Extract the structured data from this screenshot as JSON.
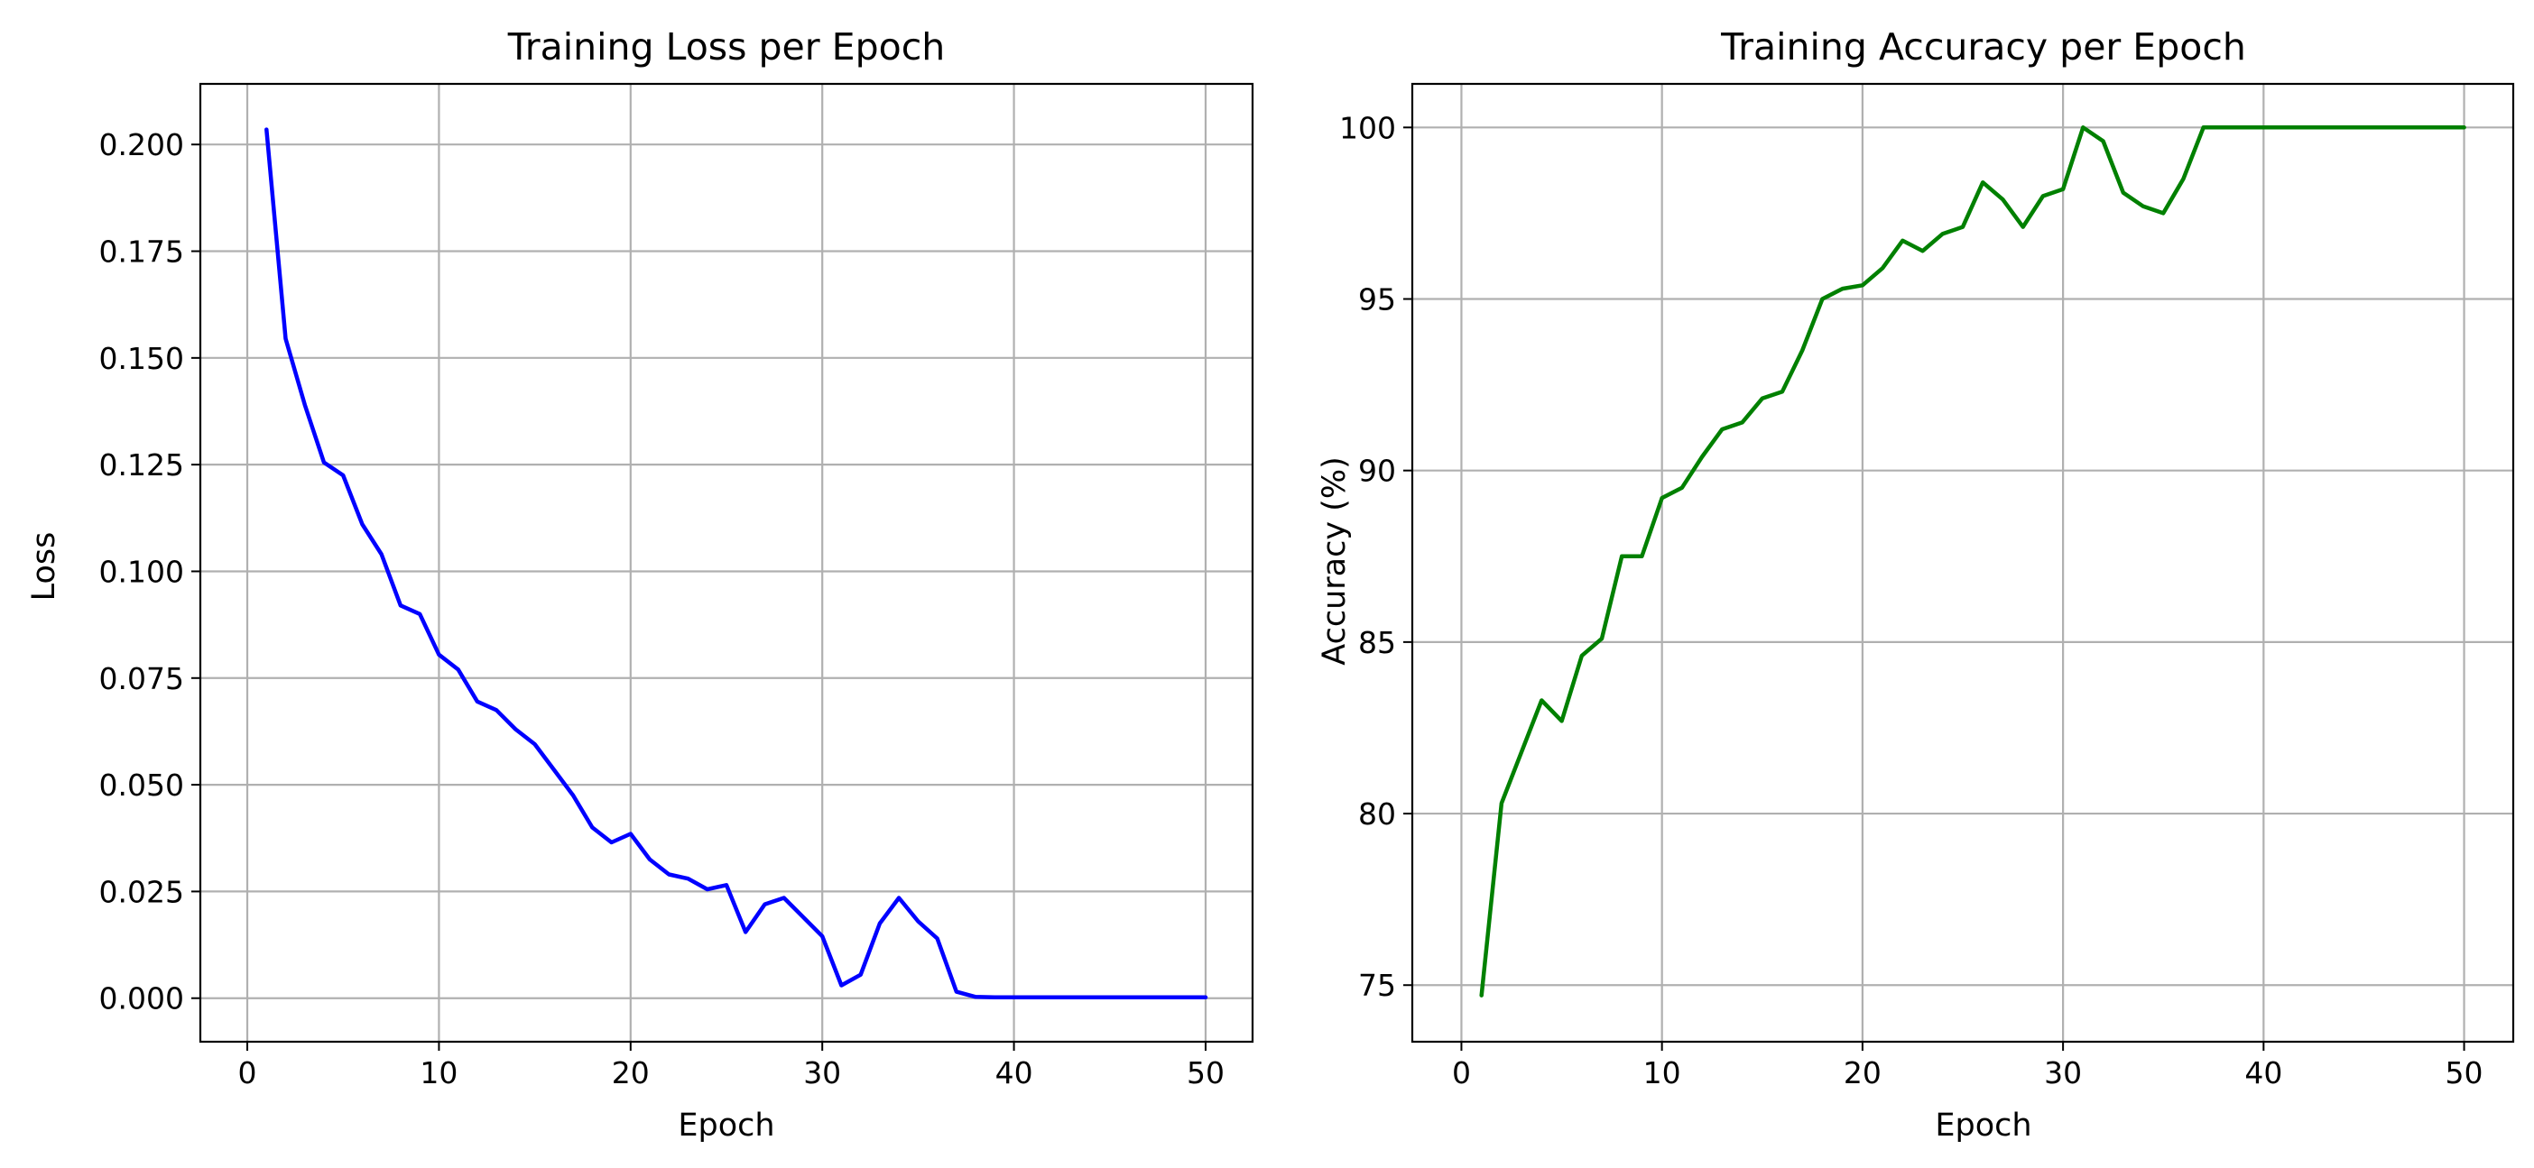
{
  "chart_data": [
    {
      "type": "line",
      "title": "Training Loss per Epoch",
      "xlabel": "Epoch",
      "ylabel": "Loss",
      "xlim": [
        -2.45,
        52.45
      ],
      "ylim": [
        -0.0102,
        0.2142
      ],
      "xticks": [
        0,
        10,
        20,
        30,
        40,
        50
      ],
      "yticks": [
        0.0,
        0.025,
        0.05,
        0.075,
        0.1,
        0.125,
        0.15,
        0.175,
        0.2
      ],
      "xtick_labels": [
        "0",
        "10",
        "20",
        "30",
        "40",
        "50"
      ],
      "ytick_labels": [
        "0.000",
        "0.025",
        "0.050",
        "0.075",
        "0.100",
        "0.125",
        "0.150",
        "0.175",
        "0.200"
      ],
      "grid": true,
      "series": [
        {
          "color": "#0000ff",
          "x": [
            1,
            2,
            3,
            4,
            5,
            6,
            7,
            8,
            9,
            10,
            11,
            12,
            13,
            14,
            15,
            16,
            17,
            18,
            19,
            20,
            21,
            22,
            23,
            24,
            25,
            26,
            27,
            28,
            29,
            30,
            31,
            32,
            33,
            34,
            35,
            36,
            37,
            38,
            39,
            40,
            41,
            42,
            43,
            44,
            45,
            46,
            47,
            48,
            49,
            50
          ],
          "values": [
            0.2035,
            0.1545,
            0.139,
            0.1255,
            0.1225,
            0.111,
            0.104,
            0.092,
            0.09,
            0.0805,
            0.077,
            0.0695,
            0.0675,
            0.063,
            0.0595,
            0.0535,
            0.0475,
            0.04,
            0.0365,
            0.0385,
            0.0325,
            0.029,
            0.028,
            0.0255,
            0.0265,
            0.0155,
            0.022,
            0.0235,
            0.019,
            0.0145,
            0.003,
            0.0055,
            0.0175,
            0.0235,
            0.018,
            0.014,
            0.0015,
            0.0003,
            0.0002,
            0.0002,
            0.0002,
            0.0002,
            0.0002,
            0.0002,
            0.0002,
            0.0002,
            0.0002,
            0.0002,
            0.0002,
            0.0002
          ]
        }
      ]
    },
    {
      "type": "line",
      "title": "Training Accuracy per Epoch",
      "xlabel": "Epoch",
      "ylabel": "Accuracy (%)",
      "xlim": [
        -2.45,
        52.45
      ],
      "ylim": [
        73.35,
        101.27
      ],
      "xticks": [
        0,
        10,
        20,
        30,
        40,
        50
      ],
      "yticks": [
        75,
        80,
        85,
        90,
        95,
        100
      ],
      "xtick_labels": [
        "0",
        "10",
        "20",
        "30",
        "40",
        "50"
      ],
      "ytick_labels": [
        "75",
        "80",
        "85",
        "90",
        "95",
        "100"
      ],
      "grid": true,
      "series": [
        {
          "color": "#008000",
          "x": [
            1,
            2,
            3,
            4,
            5,
            6,
            7,
            8,
            9,
            10,
            11,
            12,
            13,
            14,
            15,
            16,
            17,
            18,
            19,
            20,
            21,
            22,
            23,
            24,
            25,
            26,
            27,
            28,
            29,
            30,
            31,
            32,
            33,
            34,
            35,
            36,
            37,
            38,
            39,
            40,
            41,
            42,
            43,
            44,
            45,
            46,
            47,
            48,
            49,
            50
          ],
          "values": [
            74.7,
            80.3,
            81.8,
            83.3,
            82.7,
            84.6,
            85.1,
            87.5,
            87.5,
            89.2,
            89.5,
            90.4,
            91.2,
            91.4,
            92.1,
            92.3,
            93.5,
            95.0,
            95.3,
            95.4,
            95.9,
            96.7,
            96.4,
            96.9,
            97.1,
            98.4,
            97.9,
            97.1,
            98.0,
            98.2,
            100.0,
            99.6,
            98.1,
            97.7,
            97.5,
            98.5,
            100.0,
            100.0,
            100.0,
            100.0,
            100.0,
            100.0,
            100.0,
            100.0,
            100.0,
            100.0,
            100.0,
            100.0,
            100.0,
            100.0
          ]
        }
      ]
    }
  ]
}
